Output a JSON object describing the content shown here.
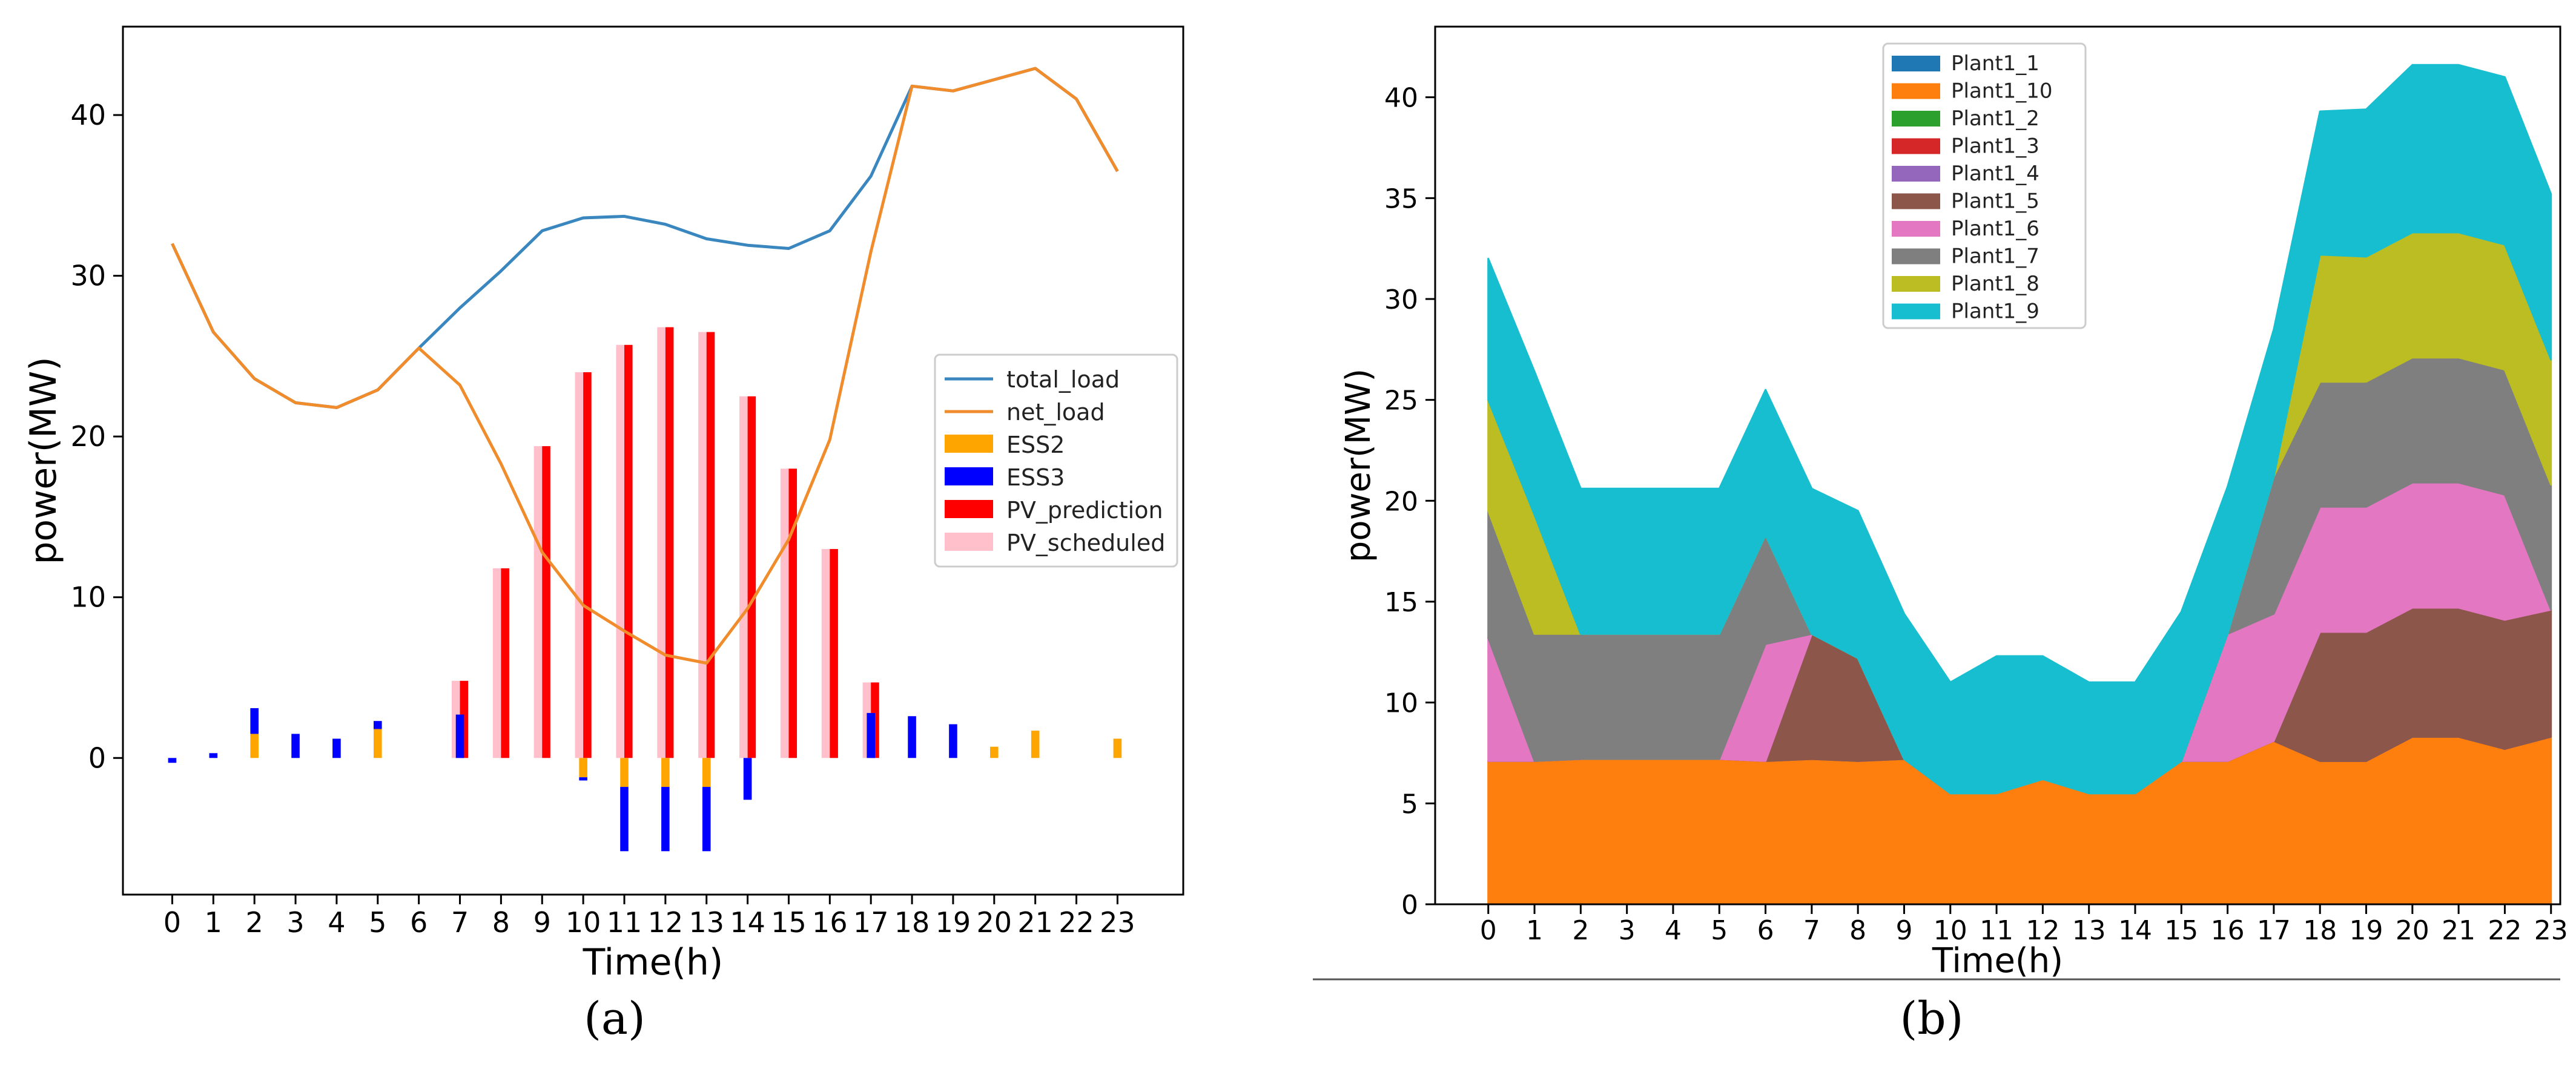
{
  "figure": {
    "panel_a_label": "(a)",
    "panel_b_label": "(b)"
  },
  "colors": {
    "total_load": "#3a87c0",
    "net_load": "#f08c2c",
    "ESS2": "#ffa500",
    "ESS3": "#0000ff",
    "PV_prediction": "#ff0000",
    "PV_scheduled": "#ffc0cb"
  },
  "chart_data": [
    {
      "type": "bar",
      "title": "",
      "xlabel": "Time(h)",
      "ylabel": "power(MW)",
      "xlim": [
        -1.2,
        24.6
      ],
      "ylim": [
        -8.5,
        45.5
      ],
      "y_ticks": [
        0,
        10,
        20,
        30,
        40
      ],
      "categories": [
        "0",
        "1",
        "2",
        "3",
        "4",
        "5",
        "6",
        "7",
        "8",
        "9",
        "10",
        "11",
        "12",
        "13",
        "14",
        "15",
        "16",
        "17",
        "18",
        "19",
        "20",
        "21",
        "22",
        "23"
      ],
      "legend_position": "center-right",
      "lines": [
        {
          "name": "total_load",
          "color": "#3a87c0",
          "values": [
            32,
            26.5,
            23.6,
            22.1,
            21.8,
            22.9,
            25.5,
            28,
            30.3,
            32.8,
            33.6,
            33.7,
            33.2,
            32.3,
            31.9,
            31.7,
            32.8,
            36.2,
            41.8,
            41.5,
            42.2,
            42.9,
            41,
            36.5
          ]
        },
        {
          "name": "net_load",
          "color": "#f08c2c",
          "values": [
            32,
            26.5,
            23.6,
            22.1,
            21.8,
            22.9,
            25.5,
            23.2,
            18.3,
            12.8,
            9.5,
            7.9,
            6.4,
            5.9,
            9.3,
            13.6,
            19.8,
            31.5,
            41.8,
            41.5,
            42.2,
            42.9,
            41,
            36.5
          ]
        }
      ],
      "bar_series": [
        {
          "name": "ESS2",
          "color": "#ffa500",
          "values": [
            0,
            0,
            1.5,
            0,
            0,
            1.8,
            0,
            0,
            0,
            0,
            -1.2,
            -1.8,
            -1.8,
            -1.8,
            0,
            0,
            0,
            0,
            0,
            0,
            0.7,
            1.7,
            0,
            1.2
          ]
        },
        {
          "name": "ESS3",
          "color": "#0000ff",
          "values": [
            -0.3,
            0.3,
            1.6,
            1.5,
            1.2,
            0.5,
            0,
            2.7,
            0,
            0,
            -0.2,
            -4,
            -4,
            -4,
            -2.6,
            0,
            0,
            2.8,
            2.6,
            2.1,
            0,
            0,
            0,
            0
          ]
        },
        {
          "name": "PV_prediction",
          "color": "#ff0000",
          "values": [
            0,
            0,
            0,
            0,
            0,
            0,
            0,
            4.8,
            11.8,
            19.4,
            24,
            25.7,
            26.8,
            26.5,
            22.5,
            18,
            13,
            4.7,
            0,
            0,
            0,
            0,
            0,
            0
          ]
        },
        {
          "name": "PV_scheduled",
          "color": "#ffc0cb",
          "values": [
            0,
            0,
            0,
            0,
            0,
            0,
            0,
            4.8,
            11.8,
            19.4,
            24,
            25.7,
            26.8,
            26.5,
            22.5,
            18,
            13,
            4.7,
            0,
            0,
            0,
            0,
            0,
            0
          ]
        }
      ],
      "legend": [
        "total_load",
        "net_load",
        "ESS2",
        "ESS3",
        "PV_prediction",
        "PV_scheduled"
      ]
    },
    {
      "type": "area",
      "stacked": true,
      "title": "",
      "xlabel": "Time(h)",
      "ylabel": "power(MW)",
      "xlim": [
        -1.15,
        23.2
      ],
      "ylim": [
        0,
        43.5
      ],
      "y_ticks": [
        0,
        5,
        10,
        15,
        20,
        25,
        30,
        35,
        40
      ],
      "x": [
        "0",
        "1",
        "2",
        "3",
        "4",
        "5",
        "6",
        "7",
        "8",
        "9",
        "10",
        "11",
        "12",
        "13",
        "14",
        "15",
        "16",
        "17",
        "18",
        "19",
        "20",
        "21",
        "22",
        "23"
      ],
      "legend_position": "top-center",
      "series": [
        {
          "name": "Plant1_1",
          "color": "#1f77b4",
          "values": [
            0,
            0,
            0,
            0,
            0,
            0,
            0,
            0,
            0,
            0,
            0,
            0,
            0,
            0,
            0,
            0,
            0,
            0,
            0,
            0,
            0,
            0,
            0,
            0
          ]
        },
        {
          "name": "Plant1_10",
          "color": "#ff7f0e",
          "values": [
            7.1,
            7.1,
            7.2,
            7.2,
            7.2,
            7.2,
            7.1,
            7.2,
            7.1,
            7.2,
            5.5,
            5.5,
            6.2,
            5.5,
            5.5,
            7.1,
            7.1,
            8.1,
            7.1,
            7.1,
            8.3,
            8.3,
            7.7,
            8.3
          ]
        },
        {
          "name": "Plant1_2",
          "color": "#2ca02c",
          "values": [
            0,
            0,
            0,
            0,
            0,
            0,
            0,
            0,
            0,
            0,
            0,
            0,
            0,
            0,
            0,
            0,
            0,
            0,
            0,
            0,
            0,
            0,
            0,
            0
          ]
        },
        {
          "name": "Plant1_3",
          "color": "#d62728",
          "values": [
            0,
            0,
            0,
            0,
            0,
            0,
            0,
            0,
            0,
            0,
            0,
            0,
            0,
            0,
            0,
            0,
            0,
            0,
            0,
            0,
            0,
            0,
            0,
            0
          ]
        },
        {
          "name": "Plant1_4",
          "color": "#9467bd",
          "values": [
            0,
            0,
            0,
            0,
            0,
            0,
            0,
            0,
            0,
            0,
            0,
            0,
            0,
            0,
            0,
            0,
            0,
            0,
            0,
            0,
            0,
            0,
            0,
            0
          ]
        },
        {
          "name": "Plant1_5",
          "color": "#8c564b",
          "values": [
            0,
            0,
            0,
            0,
            0,
            0,
            0,
            6.2,
            5.1,
            0,
            0,
            0,
            0,
            0,
            0,
            0,
            0,
            0,
            6.4,
            6.4,
            6.4,
            6.4,
            6.4,
            6.3
          ]
        },
        {
          "name": "Plant1_6",
          "color": "#e377c2",
          "values": [
            6.1,
            0,
            0,
            0,
            0,
            0,
            5.8,
            0,
            0,
            0,
            0,
            0,
            0,
            0,
            0,
            0,
            6.3,
            6.3,
            6.2,
            6.2,
            6.2,
            6.2,
            6.2,
            0
          ]
        },
        {
          "name": "Plant1_7",
          "color": "#7f7f7f",
          "values": [
            6.3,
            6.3,
            6.2,
            6.2,
            6.2,
            6.2,
            5.4,
            0,
            0,
            0,
            0,
            0,
            0,
            0,
            0,
            0,
            0,
            6.8,
            6.2,
            6.2,
            6.2,
            6.2,
            6.2,
            6.2
          ]
        },
        {
          "name": "Plant1_8",
          "color": "#bcbd22",
          "values": [
            5.5,
            5.9,
            0,
            0,
            0,
            0,
            0,
            0,
            0,
            0,
            0,
            0,
            0,
            0,
            0,
            0,
            0,
            0,
            6.3,
            6.2,
            6.2,
            6.2,
            6.2,
            6.2
          ]
        },
        {
          "name": "Plant1_9",
          "color": "#17becf",
          "values": [
            7,
            7.1,
            7.2,
            7.2,
            7.2,
            7.2,
            7.2,
            7.2,
            7.3,
            7.2,
            5.5,
            6.8,
            6.1,
            5.5,
            5.5,
            7.4,
            7.3,
            7.3,
            7.1,
            7.3,
            8.3,
            8.3,
            8.3,
            8.2
          ]
        }
      ],
      "legend": [
        "Plant1_1",
        "Plant1_10",
        "Plant1_2",
        "Plant1_3",
        "Plant1_4",
        "Plant1_5",
        "Plant1_6",
        "Plant1_7",
        "Plant1_8",
        "Plant1_9"
      ]
    }
  ]
}
